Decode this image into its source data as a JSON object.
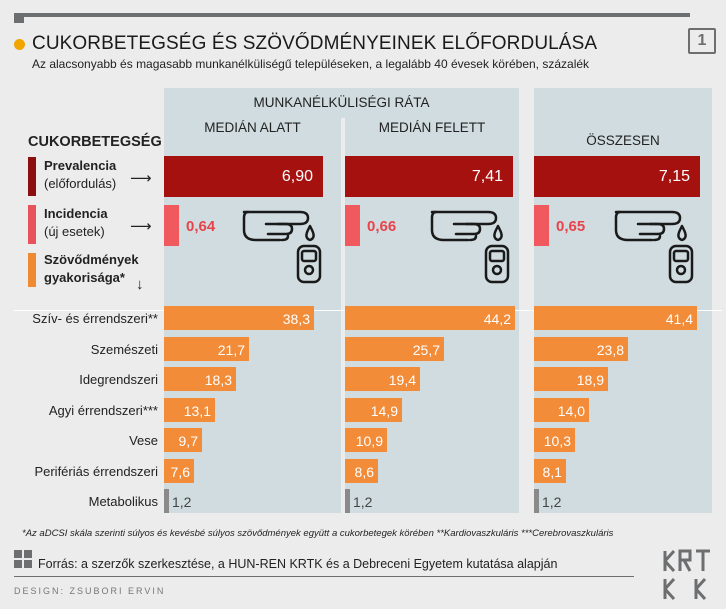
{
  "header": {
    "title": "CUKORBETEGSÉG ÉS SZÖVŐDMÉNYEINEK ELŐFORDULÁSA",
    "subtitle": "Az alacsonyabb és magasabb munkanélküliségű településeken, a legalább 40 évesek körében, százalék",
    "page_number": "1"
  },
  "chart_data": {
    "type": "bar",
    "group_title": "MUNKANÉLKÜLISÉGI RÁTA",
    "columns": [
      "MEDIÁN ALATT",
      "MEDIÁN FELETT",
      "ÖSSZESEN"
    ],
    "section_label": "CUKORBETEGSÉG",
    "diabetes": [
      {
        "label": "Prevalencia",
        "sublabel": "(előfordulás)",
        "values": [
          6.9,
          7.41,
          7.15
        ],
        "display": [
          "6,90",
          "7,41",
          "7,15"
        ]
      },
      {
        "label": "Incidencia",
        "sublabel": "(új esetek)",
        "values": [
          0.64,
          0.66,
          0.65
        ],
        "display": [
          "0,64",
          "0,66",
          "0,65"
        ]
      }
    ],
    "complications_label": [
      "Szövődmények",
      "gyakorisága*"
    ],
    "complications": [
      {
        "label": "Szív- és érrendszeri**",
        "values": [
          38.3,
          44.2,
          41.4
        ],
        "display": [
          "38,3",
          "44,2",
          "41,4"
        ]
      },
      {
        "label": "Szemészeti",
        "values": [
          21.7,
          25.7,
          23.8
        ],
        "display": [
          "21,7",
          "25,7",
          "23,8"
        ]
      },
      {
        "label": "Idegrendszeri",
        "values": [
          18.3,
          19.4,
          18.9
        ],
        "display": [
          "18,3",
          "19,4",
          "18,9"
        ]
      },
      {
        "label": "Agyi érrendszeri***",
        "values": [
          13.1,
          14.9,
          14.0
        ],
        "display": [
          "13,1",
          "14,9",
          "14,0"
        ]
      },
      {
        "label": "Vese",
        "values": [
          9.7,
          10.9,
          10.3
        ],
        "display": [
          "9,7",
          "10,9",
          "10,3"
        ]
      },
      {
        "label": "Perifériás érrendszeri",
        "values": [
          7.6,
          8.6,
          8.1
        ],
        "display": [
          "7,6",
          "8,6",
          "8,1"
        ]
      },
      {
        "label": "Metabolikus",
        "values": [
          1.2,
          1.2,
          1.2
        ],
        "display": [
          "1,2",
          "1,2",
          "1,2"
        ]
      }
    ]
  },
  "footnote": "*Az aDCSI skála szerinti súlyos és kevésbé súlyos szövődmények együtt a cukorbetegek körében **Kardiovaszkuláris ***Cerebrovaszkuláris",
  "source": "Forrás: a szerzők szerkesztése, a HUN-REN KRTK és a Debreceni Egyetem kutatása alapján",
  "design_credit": "DESIGN: ZSUBORI ERVIN",
  "logo_text": "KRTK",
  "colors": {
    "prevalence": "#a5110f",
    "incidence": "#f05a5f",
    "complication": "#f28c38",
    "small": "#8a8a8a",
    "panel": "#d0dce0",
    "accent_dot": "#f0a500"
  }
}
